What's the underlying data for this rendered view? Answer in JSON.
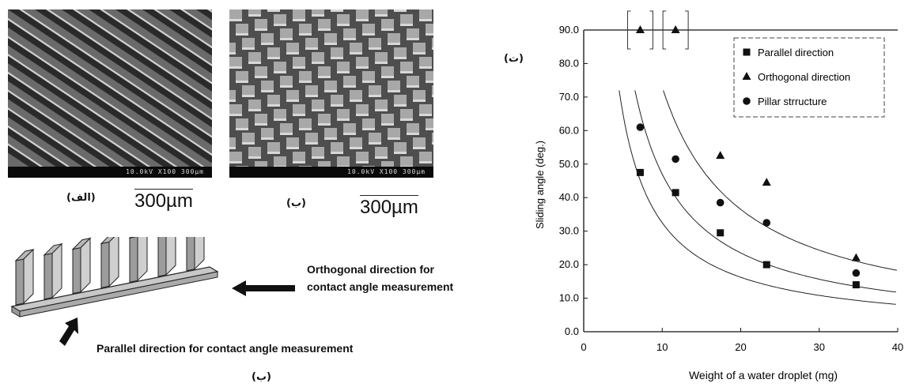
{
  "panels": {
    "a_label": "(الف)",
    "b_label": "(ب)",
    "c_label": "(ب)",
    "d_label": "(ت)",
    "scale_a": "300µm",
    "scale_b": "300µm",
    "sem_info_a": "10.0kV X100 300µm",
    "sem_info_b": "10.0kV X100 300µm"
  },
  "schematic": {
    "orthogonal_line1": "Orthogonal direction for",
    "orthogonal_line2": "contact angle measurement",
    "parallel_text": "Parallel direction for  contact angle measurement"
  },
  "chart_data": {
    "type": "scatter",
    "xlabel": "Weight of a water droplet (mg)",
    "ylabel": "Sliding angle (deg.)",
    "xlim": [
      0,
      40
    ],
    "ylim": [
      0,
      90
    ],
    "xticks": [
      "0",
      "10",
      "20",
      "30",
      "40"
    ],
    "yticks": [
      "0.0",
      "10.0",
      "20.0",
      "30.0",
      "40.0",
      "50.0",
      "60.0",
      "70.0",
      "80.0",
      "90.0"
    ],
    "legend_position": "top-right",
    "series": [
      {
        "name": "Parallel direction",
        "marker": "square",
        "x": [
          7.2,
          11.7,
          17.4,
          23.3,
          34.7
        ],
        "y": [
          47.5,
          41.5,
          29.5,
          20.0,
          14.0
        ]
      },
      {
        "name": "Orthogonal direction",
        "marker": "triangle",
        "x": [
          7.2,
          11.7,
          17.4,
          23.3,
          34.7
        ],
        "y": [
          90.0,
          90.0,
          52.5,
          44.5,
          22.0
        ]
      },
      {
        "name": "Pillar strructure",
        "marker": "circle",
        "x": [
          7.2,
          11.7,
          17.4,
          23.3,
          34.7
        ],
        "y": [
          61.0,
          51.5,
          38.5,
          32.5,
          17.5
        ]
      }
    ],
    "fit_curves": [
      {
        "k": 325
      },
      {
        "k": 470
      },
      {
        "k": 730
      }
    ]
  }
}
